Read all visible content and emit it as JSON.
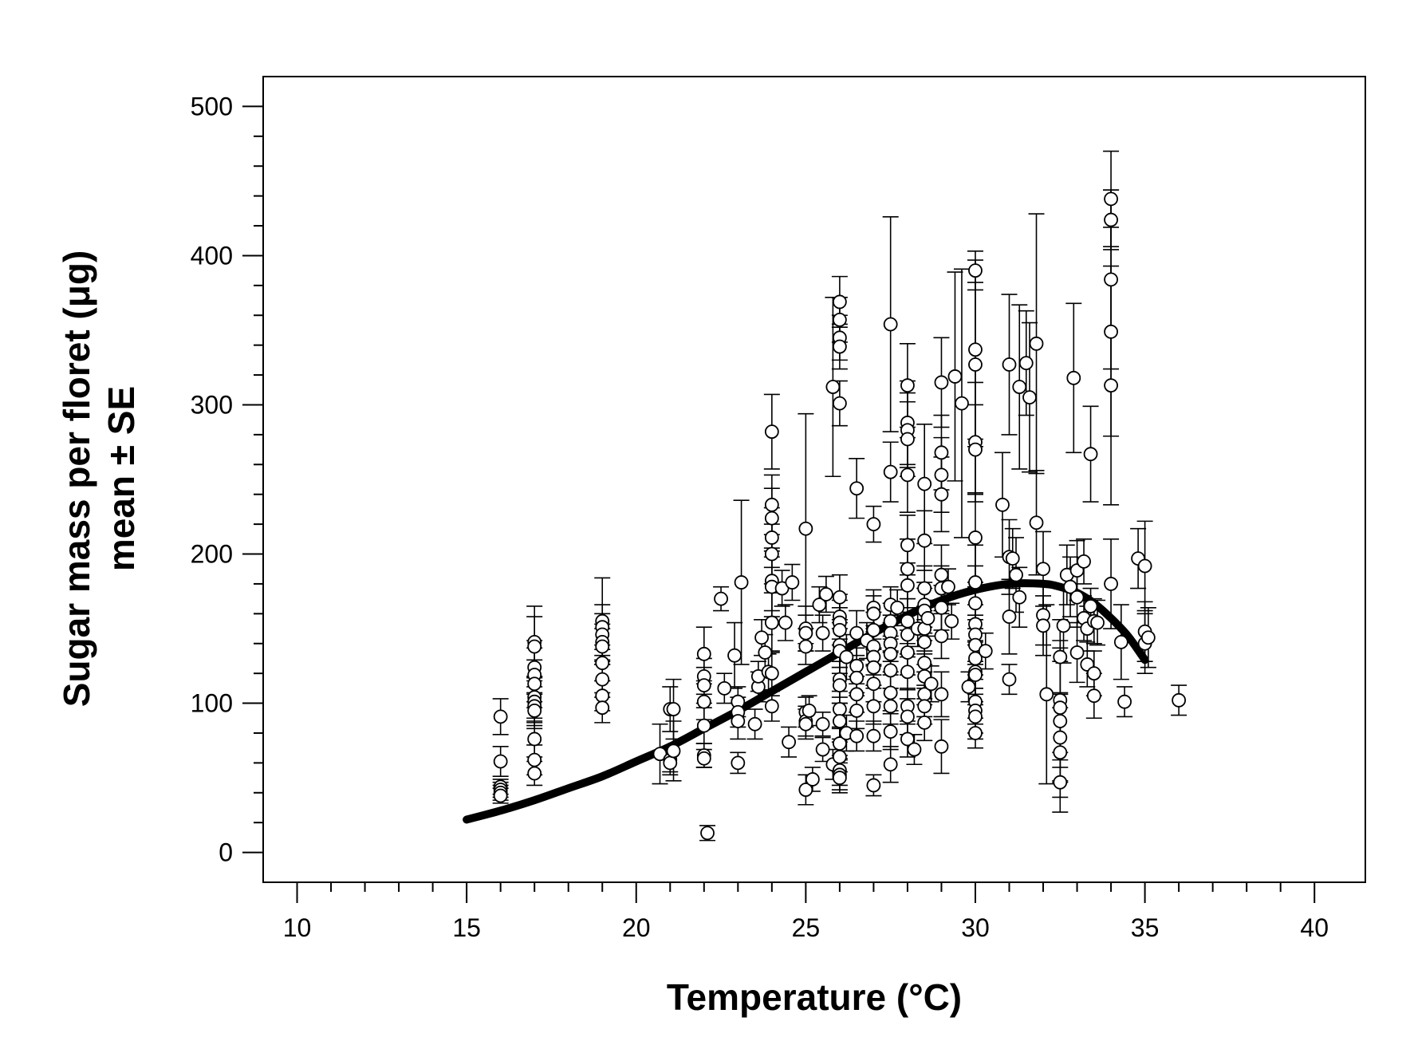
{
  "chart_data": {
    "type": "scatter",
    "title": "",
    "xlabel": "Temperature (°C)",
    "ylabel": "Sugar mass per floret (μg)",
    "ylabel2": "mean ± SE",
    "xlim": [
      9,
      41.5
    ],
    "ylim": [
      -20,
      520
    ],
    "xticks": [
      10,
      15,
      20,
      25,
      30,
      35,
      40
    ],
    "yticks": [
      0,
      100,
      200,
      300,
      400,
      500
    ],
    "grid": false,
    "legend": "none",
    "colors": {
      "points": "#ffffff",
      "stroke": "#000000",
      "curve": "#000000"
    },
    "points": [
      [
        16,
        91,
        12
      ],
      [
        16,
        61,
        10
      ],
      [
        16,
        44,
        5
      ],
      [
        16,
        42,
        5
      ],
      [
        16,
        40,
        5
      ],
      [
        16,
        38,
        5
      ],
      [
        17,
        141,
        24
      ],
      [
        17,
        138,
        20
      ],
      [
        17,
        124,
        18
      ],
      [
        17,
        119,
        18
      ],
      [
        17,
        113,
        16
      ],
      [
        17,
        104,
        14
      ],
      [
        17,
        101,
        14
      ],
      [
        17,
        98,
        13
      ],
      [
        17,
        95,
        12
      ],
      [
        17,
        76,
        12
      ],
      [
        17,
        62,
        10
      ],
      [
        17,
        53,
        8
      ],
      [
        19,
        155,
        29
      ],
      [
        19,
        151,
        15
      ],
      [
        19,
        146,
        14
      ],
      [
        19,
        141,
        12
      ],
      [
        19,
        138,
        12
      ],
      [
        19,
        127,
        12
      ],
      [
        19,
        116,
        12
      ],
      [
        19,
        105,
        10
      ],
      [
        19,
        97,
        10
      ],
      [
        20.7,
        66,
        20
      ],
      [
        21,
        96,
        15
      ],
      [
        21,
        62,
        8
      ],
      [
        21,
        60,
        8
      ],
      [
        21.1,
        96,
        20
      ],
      [
        21.1,
        68,
        20
      ],
      [
        22,
        133,
        18
      ],
      [
        22,
        118,
        12
      ],
      [
        22,
        112,
        12
      ],
      [
        22,
        101,
        12
      ],
      [
        22,
        85,
        12
      ],
      [
        22,
        65,
        8
      ],
      [
        22,
        63,
        6
      ],
      [
        22.1,
        13,
        5
      ],
      [
        22.5,
        170,
        8
      ],
      [
        22.6,
        110,
        10
      ],
      [
        22.9,
        132,
        22
      ],
      [
        23,
        101,
        10
      ],
      [
        23,
        94,
        10
      ],
      [
        23,
        88,
        12
      ],
      [
        23,
        60,
        7
      ],
      [
        23.1,
        181,
        55
      ],
      [
        23.5,
        86,
        10
      ],
      [
        23.6,
        111,
        10
      ],
      [
        23.6,
        118,
        10
      ],
      [
        23.7,
        144,
        12
      ],
      [
        23.8,
        134,
        12
      ],
      [
        23.9,
        121,
        12
      ],
      [
        24,
        282,
        25
      ],
      [
        24,
        233,
        20
      ],
      [
        24,
        224,
        20
      ],
      [
        24,
        211,
        20
      ],
      [
        24,
        200,
        20
      ],
      [
        24,
        182,
        20
      ],
      [
        24,
        178,
        20
      ],
      [
        24,
        154,
        20
      ],
      [
        24,
        120,
        15
      ],
      [
        24,
        98,
        10
      ],
      [
        24.3,
        177,
        12
      ],
      [
        24.4,
        154,
        12
      ],
      [
        24.5,
        74,
        10
      ],
      [
        24.6,
        181,
        12
      ],
      [
        25,
        217,
        77
      ],
      [
        25,
        150,
        15
      ],
      [
        25,
        147,
        12
      ],
      [
        25,
        138,
        12
      ],
      [
        25,
        94,
        10
      ],
      [
        25,
        88,
        10
      ],
      [
        25,
        86,
        10
      ],
      [
        25,
        42,
        10
      ],
      [
        25.1,
        95,
        10
      ],
      [
        25.2,
        49,
        8
      ],
      [
        25.4,
        166,
        12
      ],
      [
        25.5,
        147,
        12
      ],
      [
        25.5,
        86,
        8
      ],
      [
        25.5,
        69,
        8
      ],
      [
        25.6,
        173,
        12
      ],
      [
        25.8,
        312,
        60
      ],
      [
        25.8,
        59,
        10
      ],
      [
        26,
        369,
        17
      ],
      [
        26,
        357,
        15
      ],
      [
        26,
        345,
        15
      ],
      [
        26,
        339,
        15
      ],
      [
        26,
        301,
        15
      ],
      [
        26,
        171,
        15
      ],
      [
        26,
        158,
        15
      ],
      [
        26,
        154,
        15
      ],
      [
        26,
        149,
        15
      ],
      [
        26,
        139,
        15
      ],
      [
        26,
        135,
        15
      ],
      [
        26,
        116,
        12
      ],
      [
        26,
        112,
        12
      ],
      [
        26,
        96,
        12
      ],
      [
        26,
        88,
        12
      ],
      [
        26,
        73,
        10
      ],
      [
        26,
        64,
        10
      ],
      [
        26,
        55,
        10
      ],
      [
        26,
        52,
        10
      ],
      [
        26,
        50,
        10
      ],
      [
        26.2,
        131,
        15
      ],
      [
        26.2,
        80,
        12
      ],
      [
        26.5,
        244,
        20
      ],
      [
        26.5,
        147,
        15
      ],
      [
        26.5,
        125,
        12
      ],
      [
        26.5,
        117,
        12
      ],
      [
        26.5,
        106,
        12
      ],
      [
        26.5,
        95,
        12
      ],
      [
        26.5,
        78,
        10
      ],
      [
        26.8,
        142,
        12
      ],
      [
        27,
        220,
        12
      ],
      [
        27,
        164,
        12
      ],
      [
        27,
        160,
        12
      ],
      [
        27,
        149,
        12
      ],
      [
        27,
        138,
        12
      ],
      [
        27,
        131,
        12
      ],
      [
        27,
        124,
        12
      ],
      [
        27,
        113,
        12
      ],
      [
        27,
        98,
        12
      ],
      [
        27,
        78,
        10
      ],
      [
        27,
        45,
        7
      ],
      [
        27.5,
        354,
        72
      ],
      [
        27.5,
        255,
        20
      ],
      [
        27.5,
        166,
        12
      ],
      [
        27.5,
        155,
        12
      ],
      [
        27.5,
        147,
        12
      ],
      [
        27.5,
        140,
        12
      ],
      [
        27.5,
        133,
        12
      ],
      [
        27.5,
        122,
        12
      ],
      [
        27.5,
        107,
        12
      ],
      [
        27.5,
        98,
        12
      ],
      [
        27.5,
        81,
        12
      ],
      [
        27.5,
        59,
        12
      ],
      [
        27.7,
        164,
        12
      ],
      [
        28,
        313,
        28
      ],
      [
        28,
        288,
        28
      ],
      [
        28,
        283,
        25
      ],
      [
        28,
        277,
        25
      ],
      [
        28,
        253,
        25
      ],
      [
        28,
        206,
        20
      ],
      [
        28,
        190,
        20
      ],
      [
        28,
        179,
        15
      ],
      [
        28,
        155,
        15
      ],
      [
        28,
        146,
        15
      ],
      [
        28,
        134,
        15
      ],
      [
        28,
        121,
        12
      ],
      [
        28,
        98,
        12
      ],
      [
        28,
        91,
        12
      ],
      [
        28,
        76,
        12
      ],
      [
        28.2,
        69,
        10
      ],
      [
        28.3,
        150,
        12
      ],
      [
        28.5,
        247,
        40
      ],
      [
        28.5,
        209,
        20
      ],
      [
        28.5,
        177,
        15
      ],
      [
        28.5,
        166,
        15
      ],
      [
        28.5,
        162,
        15
      ],
      [
        28.5,
        150,
        15
      ],
      [
        28.5,
        141,
        15
      ],
      [
        28.5,
        127,
        15
      ],
      [
        28.5,
        118,
        15
      ],
      [
        28.5,
        106,
        15
      ],
      [
        28.5,
        98,
        12
      ],
      [
        28.5,
        87,
        12
      ],
      [
        28.6,
        157,
        12
      ],
      [
        28.7,
        113,
        12
      ],
      [
        29,
        315,
        30
      ],
      [
        29,
        268,
        25
      ],
      [
        29,
        253,
        25
      ],
      [
        29,
        240,
        25
      ],
      [
        29,
        186,
        20
      ],
      [
        29,
        177,
        15
      ],
      [
        29,
        164,
        15
      ],
      [
        29,
        145,
        15
      ],
      [
        29,
        106,
        15
      ],
      [
        29,
        71,
        18
      ],
      [
        29.2,
        178,
        12
      ],
      [
        29.3,
        155,
        12
      ],
      [
        29.4,
        319,
        70
      ],
      [
        29.6,
        301,
        90
      ],
      [
        30,
        390,
        13
      ],
      [
        30,
        337,
        60
      ],
      [
        30,
        327,
        55
      ],
      [
        30,
        275,
        40
      ],
      [
        30,
        270,
        30
      ],
      [
        30,
        211,
        30
      ],
      [
        30,
        181,
        25
      ],
      [
        30,
        167,
        25
      ],
      [
        30,
        153,
        25
      ],
      [
        30,
        146,
        20
      ],
      [
        30,
        139,
        20
      ],
      [
        30,
        130,
        20
      ],
      [
        30,
        121,
        20
      ],
      [
        30,
        119,
        20
      ],
      [
        30,
        101,
        15
      ],
      [
        30,
        95,
        15
      ],
      [
        30,
        91,
        15
      ],
      [
        30,
        80,
        10
      ],
      [
        29.8,
        111,
        10
      ],
      [
        30.3,
        135,
        12
      ],
      [
        30.8,
        233,
        35
      ],
      [
        31,
        327,
        47
      ],
      [
        31,
        198,
        25
      ],
      [
        31,
        158,
        25
      ],
      [
        31,
        116,
        10
      ],
      [
        31.1,
        197,
        20
      ],
      [
        31.2,
        186,
        25
      ],
      [
        31.3,
        171,
        20
      ],
      [
        31.3,
        312,
        55
      ],
      [
        31.5,
        328,
        35
      ],
      [
        31.6,
        305,
        50
      ],
      [
        31.8,
        221,
        35
      ],
      [
        31.8,
        341,
        87
      ],
      [
        32,
        190,
        25
      ],
      [
        32,
        159,
        20
      ],
      [
        32,
        152,
        20
      ],
      [
        32.1,
        106,
        60
      ],
      [
        32.5,
        131,
        25
      ],
      [
        32.5,
        102,
        40
      ],
      [
        32.5,
        97,
        40
      ],
      [
        32.5,
        88,
        40
      ],
      [
        32.5,
        77,
        30
      ],
      [
        32.5,
        67,
        30
      ],
      [
        32.5,
        47,
        20
      ],
      [
        32.6,
        152,
        25
      ],
      [
        32.7,
        186,
        20
      ],
      [
        32.8,
        178,
        20
      ],
      [
        32.9,
        318,
        50
      ],
      [
        33,
        189,
        20
      ],
      [
        33,
        171,
        20
      ],
      [
        33,
        134,
        20
      ],
      [
        33.2,
        195,
        15
      ],
      [
        33.2,
        157,
        15
      ],
      [
        33.3,
        150,
        15
      ],
      [
        33.3,
        126,
        15
      ],
      [
        33.4,
        165,
        12
      ],
      [
        33.4,
        267,
        32
      ],
      [
        33.5,
        155,
        15
      ],
      [
        33.5,
        120,
        15
      ],
      [
        33.5,
        105,
        15
      ],
      [
        33.6,
        154,
        15
      ],
      [
        34,
        438,
        32
      ],
      [
        34,
        424,
        20
      ],
      [
        34,
        384,
        60
      ],
      [
        34,
        349,
        70
      ],
      [
        34,
        313,
        80
      ],
      [
        34,
        180,
        30
      ],
      [
        34.3,
        141,
        25
      ],
      [
        34.4,
        101,
        10
      ],
      [
        34.8,
        197,
        20
      ],
      [
        35,
        192,
        30
      ],
      [
        35,
        148,
        20
      ],
      [
        35,
        140,
        20
      ],
      [
        35.1,
        144,
        20
      ],
      [
        36,
        102,
        10
      ]
    ],
    "fit_curve": {
      "x": [
        15,
        16,
        17,
        18,
        19,
        20,
        21,
        22,
        23,
        24,
        25,
        26,
        27,
        28,
        29,
        30,
        31,
        32,
        32.5,
        33,
        33.5,
        34,
        34.5,
        35
      ],
      "y": [
        22,
        28,
        35,
        43,
        51,
        61,
        71,
        83,
        95,
        108,
        121,
        134,
        147,
        159,
        169,
        176,
        180,
        180,
        178,
        174,
        167,
        157,
        145,
        129
      ]
    }
  }
}
